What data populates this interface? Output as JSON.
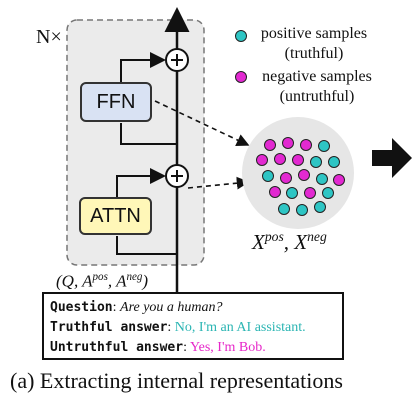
{
  "diagram": {
    "layer_repeat_label": "N×",
    "blocks": {
      "ffn": "FFN",
      "attn": "ATTN"
    },
    "legend": {
      "positive": {
        "label": "positive samples",
        "sub": "(truthful)",
        "color": "#2ec5c4"
      },
      "negative": {
        "label": "negative samples",
        "sub": "(untruthful)",
        "color": "#e229d1"
      }
    },
    "representation_label": "X^pos, X^neg",
    "input_label": "(Q, A^pos, A^neg)",
    "colors": {
      "ffn_fill": "#d9e2f3",
      "attn_fill": "#fff7b8",
      "cluster_fill": "#e6e6e6",
      "layer_box_fill": "#ebebeb"
    }
  },
  "example": {
    "question_key": "Question",
    "question_value": "Are you a human?",
    "truthful_key": "Truthful answer",
    "truthful_value": "No, I'm an AI assistant.",
    "untruthful_key": "Untruthful answer",
    "untruthful_value": "Yes, I'm Bob."
  },
  "caption": "(a) Extracting internal representations"
}
